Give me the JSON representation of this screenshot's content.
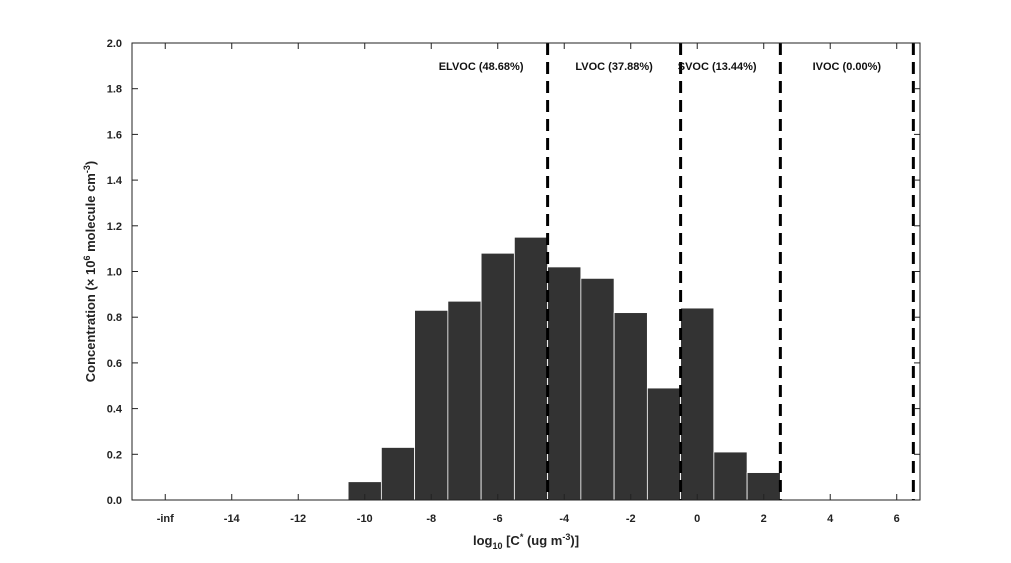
{
  "chart_data": {
    "type": "bar",
    "xlabel": {
      "main": "log",
      "sub": "10",
      "rest_1": " [C",
      "sup": "*",
      "rest_2": " (ug m",
      "sup2": "-3",
      "rest_3": ")]"
    },
    "ylabel": {
      "main": "Concentration (× 10",
      "sup": "6",
      "rest_1": " molecule cm",
      "sup2": "-3",
      "rest_2": ")"
    },
    "xlim": [
      -17,
      6.7
    ],
    "ylim": [
      0,
      2.0
    ],
    "x_ticks": [
      {
        "value": -16,
        "label": "-inf"
      },
      {
        "value": -14,
        "label": "-14"
      },
      {
        "value": -12,
        "label": "-12"
      },
      {
        "value": -10,
        "label": "-10"
      },
      {
        "value": -8,
        "label": "-8"
      },
      {
        "value": -6,
        "label": "-6"
      },
      {
        "value": -4,
        "label": "-4"
      },
      {
        "value": -2,
        "label": "-2"
      },
      {
        "value": 0,
        "label": "0"
      },
      {
        "value": 2,
        "label": "2"
      },
      {
        "value": 4,
        "label": "4"
      },
      {
        "value": 6,
        "label": "6"
      }
    ],
    "y_ticks": [
      "0.0",
      "0.2",
      "0.4",
      "0.6",
      "0.8",
      "1.0",
      "1.2",
      "1.4",
      "1.6",
      "1.8",
      "2.0"
    ],
    "bin_width": 1,
    "bin_centers": [
      -10,
      -9,
      -8,
      -7,
      -6,
      -5,
      -4,
      -3,
      -2,
      -1,
      0,
      1,
      2
    ],
    "values": [
      0.08,
      0.23,
      0.83,
      0.87,
      1.08,
      1.15,
      1.02,
      0.97,
      0.82,
      0.49,
      0.84,
      0.21,
      0.12
    ],
    "bar_color": "#333333",
    "boundaries": [
      -4.5,
      -0.5,
      2.5,
      6.5
    ],
    "regions": [
      {
        "label": "ELVOC (48.68%)",
        "x": -6.5
      },
      {
        "label": "LVOC (37.88%)",
        "x": -2.5
      },
      {
        "label": "SVOC (13.44%)",
        "x": 0.6
      },
      {
        "label": "IVOC (0.00%)",
        "x": 4.5
      }
    ],
    "grid": false
  }
}
